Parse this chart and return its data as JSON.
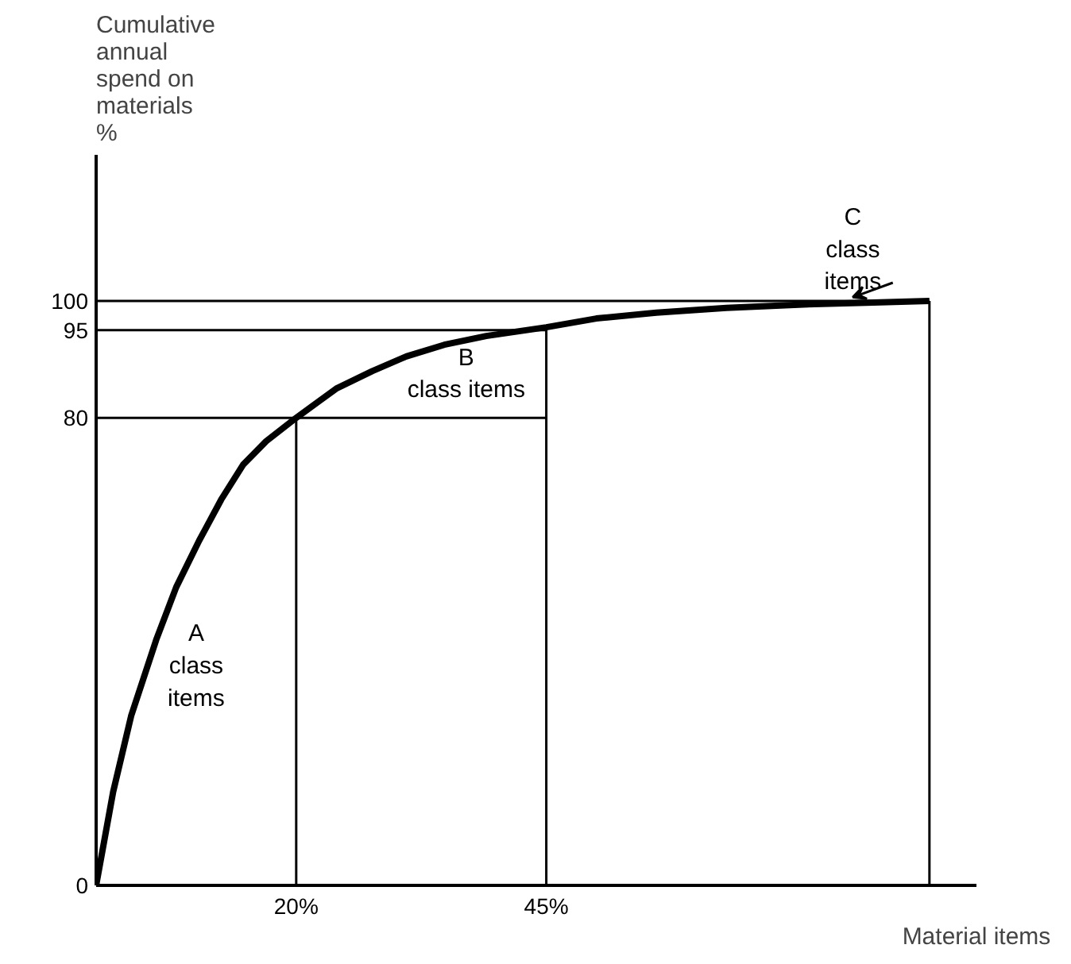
{
  "chart_data": {
    "type": "line",
    "ylabel": "Cumulative\nannual\nspend on\nmaterials\n%",
    "xlabel": "Material items",
    "x": [
      0,
      1.7,
      3.5,
      6,
      8,
      10.3,
      12.5,
      14.7,
      17,
      20,
      24,
      27.6,
      31,
      34.8,
      39,
      45,
      50,
      56,
      63,
      70.7,
      77,
      83.3
    ],
    "series": [
      {
        "color": "#000000",
        "values": [
          0,
          16,
          29,
          42,
          51,
          59,
          66,
          72,
          76,
          80,
          85,
          88,
          90.5,
          92.5,
          94,
          95.5,
          97,
          98,
          98.8,
          99.4,
          99.7,
          100
        ]
      }
    ],
    "xlim": [
      0,
      88
    ],
    "ylim": [
      0,
      125
    ],
    "xticks": [
      {
        "value": 20,
        "label": "20%"
      },
      {
        "value": 45,
        "label": "45%"
      }
    ],
    "yticks": [
      0,
      80,
      95,
      100
    ],
    "ref_lines": [
      {
        "axis": "x",
        "value": 20,
        "color": "#000000"
      },
      {
        "axis": "x",
        "value": 45,
        "color": "#000000"
      },
      {
        "axis": "x",
        "value": 83.3,
        "color": "#000000"
      },
      {
        "axis": "y",
        "value": 80,
        "color": "#000000"
      },
      {
        "axis": "y",
        "value": 95,
        "color": "#000000"
      },
      {
        "axis": "y",
        "value": 100,
        "color": "#000000"
      }
    ],
    "annotations": [
      "A\nclass\nitems",
      "B\nclass items",
      "C\nclass\nitems"
    ],
    "grid": false,
    "marker": "none",
    "line_style": "solid"
  }
}
